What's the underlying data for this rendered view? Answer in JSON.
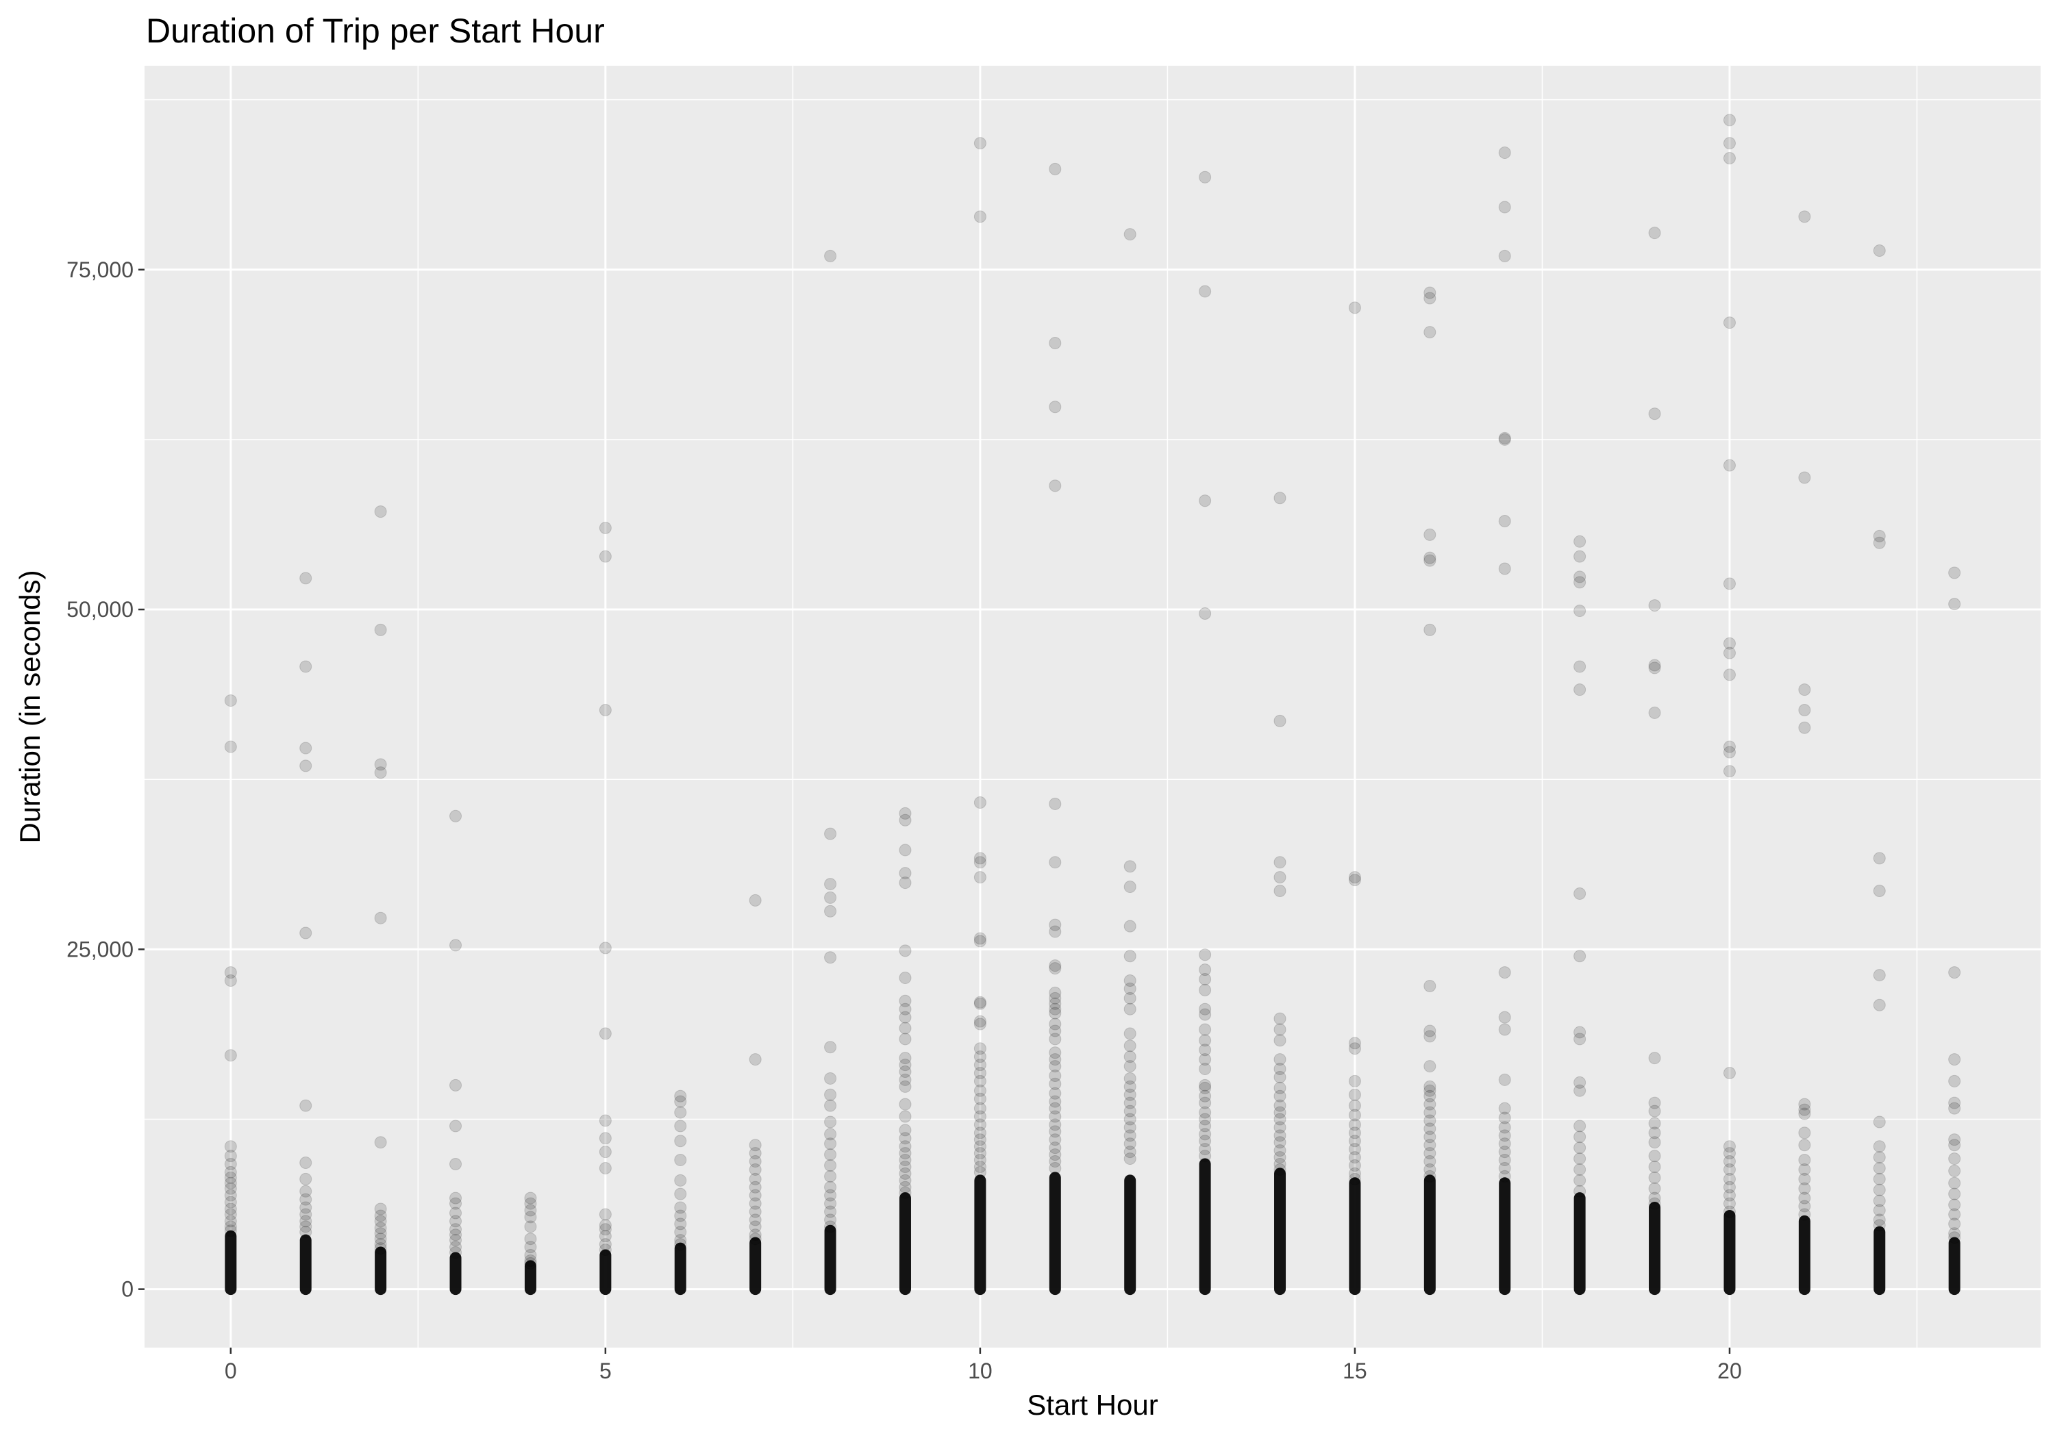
{
  "chart_data": {
    "type": "scatter",
    "title": "Duration of Trip per Start Hour",
    "xlabel": "Start Hour",
    "ylabel": "Duration (in seconds)",
    "xlim": [
      -1.15,
      24.15
    ],
    "ylim": [
      -4300,
      90000
    ],
    "x_ticks": [
      0,
      5,
      10,
      15,
      20
    ],
    "x_tick_labels": [
      "0",
      "5",
      "10",
      "15",
      "20"
    ],
    "y_ticks": [
      0,
      25000,
      50000,
      75000
    ],
    "y_tick_labels": [
      "0",
      "25,000",
      "50,000",
      "75,000"
    ],
    "grid": true,
    "legend": "none",
    "colors": {
      "panel": "#ebebeb",
      "grid": "#ffffff",
      "point": "#000000"
    },
    "dense_band_max": [
      3900,
      3600,
      2700,
      2300,
      1700,
      2500,
      3000,
      3400,
      4300,
      6700,
      8000,
      8200,
      8000,
      9200,
      8500,
      7800,
      8000,
      7800,
      6700,
      6000,
      5400,
      5000,
      4200,
      3400
    ],
    "outliers": [
      {
        "hour": 0,
        "durations": [
          43300,
          39900,
          23300,
          22700,
          17200,
          10500,
          9800,
          9200,
          8600,
          8200,
          7800,
          7400,
          6900,
          6400,
          5900,
          5500,
          5000,
          4600,
          4300
        ]
      },
      {
        "hour": 1,
        "durations": [
          52300,
          45800,
          39800,
          38500,
          26200,
          13500,
          9300,
          8100,
          7200,
          6600,
          6000,
          5500,
          5000,
          4600,
          4200
        ]
      },
      {
        "hour": 2,
        "durations": [
          57200,
          48500,
          38600,
          38000,
          27300,
          10800,
          5900,
          5400,
          5000,
          4500,
          4100,
          3700,
          3300,
          3000
        ]
      },
      {
        "hour": 3,
        "durations": [
          34800,
          25300,
          15000,
          12000,
          9200,
          6700,
          6300,
          5600,
          5000,
          4400,
          4000,
          3600,
          3100,
          2700
        ]
      },
      {
        "hour": 4,
        "durations": [
          6700,
          6300,
          5800,
          5300,
          4600,
          3700,
          3100,
          2500,
          2100,
          1900
        ]
      },
      {
        "hour": 5,
        "durations": [
          56000,
          53900,
          42600,
          25100,
          18800,
          12400,
          11100,
          10100,
          8900,
          5500,
          4700,
          4400,
          3900,
          3300,
          2900
        ]
      },
      {
        "hour": 6,
        "durations": [
          14200,
          13800,
          13000,
          12000,
          10900,
          9500,
          8000,
          7000,
          6000,
          5400,
          4800,
          4200,
          3600,
          3300
        ]
      },
      {
        "hour": 7,
        "durations": [
          28600,
          16900,
          10600,
          10000,
          9400,
          8800,
          8100,
          7500,
          6900,
          6300,
          5700,
          5100,
          4600,
          4000,
          3700
        ]
      },
      {
        "hour": 8,
        "durations": [
          76000,
          33500,
          29800,
          28800,
          27800,
          24400,
          17800,
          15500,
          14300,
          13500,
          12300,
          11400,
          10700,
          9900,
          9100,
          8300,
          7500,
          6900,
          6300,
          5700,
          5100,
          4600
        ]
      },
      {
        "hour": 9,
        "durations": [
          35000,
          34500,
          32300,
          30600,
          29900,
          24900,
          22900,
          21200,
          20600,
          20000,
          19200,
          18400,
          17000,
          16500,
          16000,
          15400,
          14900,
          13600,
          12700,
          11700,
          11100,
          10500,
          10000,
          9500,
          9000,
          8500,
          8000,
          7500,
          7100
        ]
      },
      {
        "hour": 10,
        "durations": [
          84300,
          78900,
          35800,
          31700,
          31400,
          30300,
          25800,
          25600,
          21100,
          21000,
          19700,
          19500,
          17700,
          17100,
          16500,
          15900,
          15300,
          14600,
          14000,
          13300,
          12700,
          12100,
          11500,
          11000,
          10500,
          10000,
          9500,
          9000,
          8600
        ]
      },
      {
        "hour": 11,
        "durations": [
          82400,
          69600,
          64900,
          59100,
          35700,
          31400,
          26800,
          26300,
          23800,
          23600,
          21800,
          21400,
          21000,
          20600,
          20300,
          19500,
          19000,
          18400,
          17400,
          16900,
          16400,
          15700,
          15100,
          14400,
          13800,
          13300,
          12700,
          12100,
          11600,
          11000,
          10400,
          9900,
          9400,
          8900
        ]
      },
      {
        "hour": 12,
        "durations": [
          77600,
          31100,
          29600,
          26700,
          24500,
          22700,
          22100,
          21400,
          20600,
          18800,
          17900,
          17100,
          16400,
          15500,
          14900,
          14300,
          13700,
          13100,
          12500,
          11900,
          11300,
          10700,
          10100,
          9600
        ]
      },
      {
        "hour": 13,
        "durations": [
          81800,
          73400,
          58000,
          49700,
          24600,
          23500,
          22800,
          22000,
          20600,
          20200,
          19100,
          18300,
          17600,
          16900,
          16200,
          15000,
          14800,
          14200,
          13700,
          13000,
          12500,
          12000,
          11400,
          10900,
          10300,
          9800
        ]
      },
      {
        "hour": 14,
        "durations": [
          58200,
          41800,
          31400,
          30300,
          29300,
          19900,
          19100,
          18300,
          16900,
          16200,
          15600,
          14800,
          14200,
          13500,
          13000,
          12500,
          11900,
          11300,
          10800,
          10200,
          9700,
          9200,
          8800
        ]
      },
      {
        "hour": 15,
        "durations": [
          72200,
          30300,
          30100,
          18100,
          17700,
          15300,
          14300,
          13500,
          12800,
          12100,
          11500,
          10900,
          10300,
          9700,
          9100,
          8500,
          8100
        ]
      },
      {
        "hour": 16,
        "durations": [
          73300,
          72900,
          70400,
          55500,
          53800,
          53600,
          48500,
          22300,
          19000,
          18600,
          16400,
          14900,
          14600,
          14200,
          13600,
          13000,
          12400,
          11800,
          11200,
          10600,
          10000,
          9400,
          8800,
          8300
        ]
      },
      {
        "hour": 17,
        "durations": [
          83600,
          79600,
          76000,
          62600,
          62500,
          56500,
          53000,
          23300,
          20000,
          19100,
          15400,
          13300,
          12600,
          11900,
          11300,
          10700,
          10100,
          9500,
          8900,
          8300
        ]
      },
      {
        "hour": 18,
        "durations": [
          55000,
          53900,
          52400,
          52000,
          49900,
          45800,
          44100,
          29100,
          24500,
          18900,
          18400,
          15200,
          14600,
          12000,
          11200,
          10400,
          9600,
          8800,
          8000,
          7200
        ]
      },
      {
        "hour": 19,
        "durations": [
          77700,
          64400,
          50300,
          45900,
          45700,
          42400,
          17000,
          13700,
          13100,
          12200,
          11500,
          10800,
          9800,
          9000,
          8200,
          7400,
          6700,
          6300
        ]
      },
      {
        "hour": 20,
        "durations": [
          86000,
          84300,
          83200,
          71100,
          60600,
          51900,
          47500,
          46800,
          45200,
          39900,
          39500,
          38100,
          15900,
          10500,
          10000,
          9400,
          8800,
          8100,
          7500,
          6900,
          6300,
          5700
        ]
      },
      {
        "hour": 21,
        "durations": [
          78900,
          59700,
          44100,
          42600,
          41300,
          13600,
          13200,
          12900,
          11500,
          10600,
          9500,
          8800,
          8100,
          7400,
          6700,
          6100,
          5500
        ]
      },
      {
        "hour": 22,
        "durations": [
          76400,
          55400,
          54900,
          31700,
          29300,
          23100,
          20900,
          12300,
          10500,
          9700,
          8900,
          8100,
          7300,
          6500,
          5800,
          5100,
          4700
        ]
      },
      {
        "hour": 23,
        "durations": [
          52700,
          50400,
          23300,
          16900,
          15300,
          13700,
          13300,
          11000,
          10600,
          9600,
          8700,
          7800,
          7000,
          6200,
          5500,
          4800,
          4100,
          3800
        ]
      }
    ]
  }
}
